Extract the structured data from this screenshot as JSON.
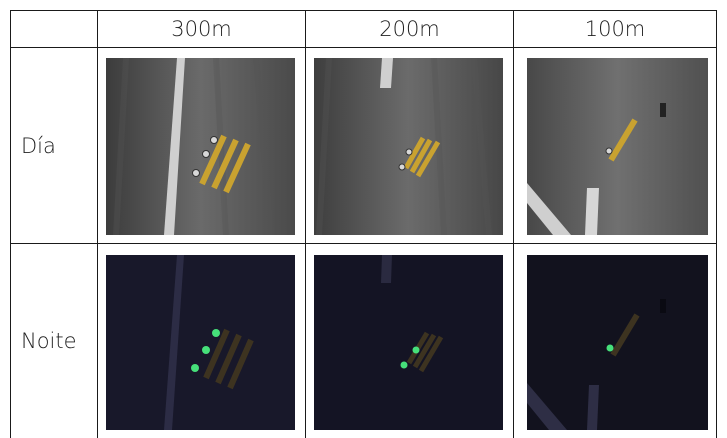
{
  "table": {
    "columns": [
      "300m",
      "200m",
      "100m"
    ],
    "rows": [
      {
        "label": "Día"
      },
      {
        "label": "Noite"
      }
    ]
  },
  "colors": {
    "border": "#1a1a1a",
    "day_road": "#5b5b5b",
    "night_road": "#17172a",
    "day_marking": "#c9a230",
    "night_marking": "#3d3320",
    "night_light": "#46e07a"
  }
}
